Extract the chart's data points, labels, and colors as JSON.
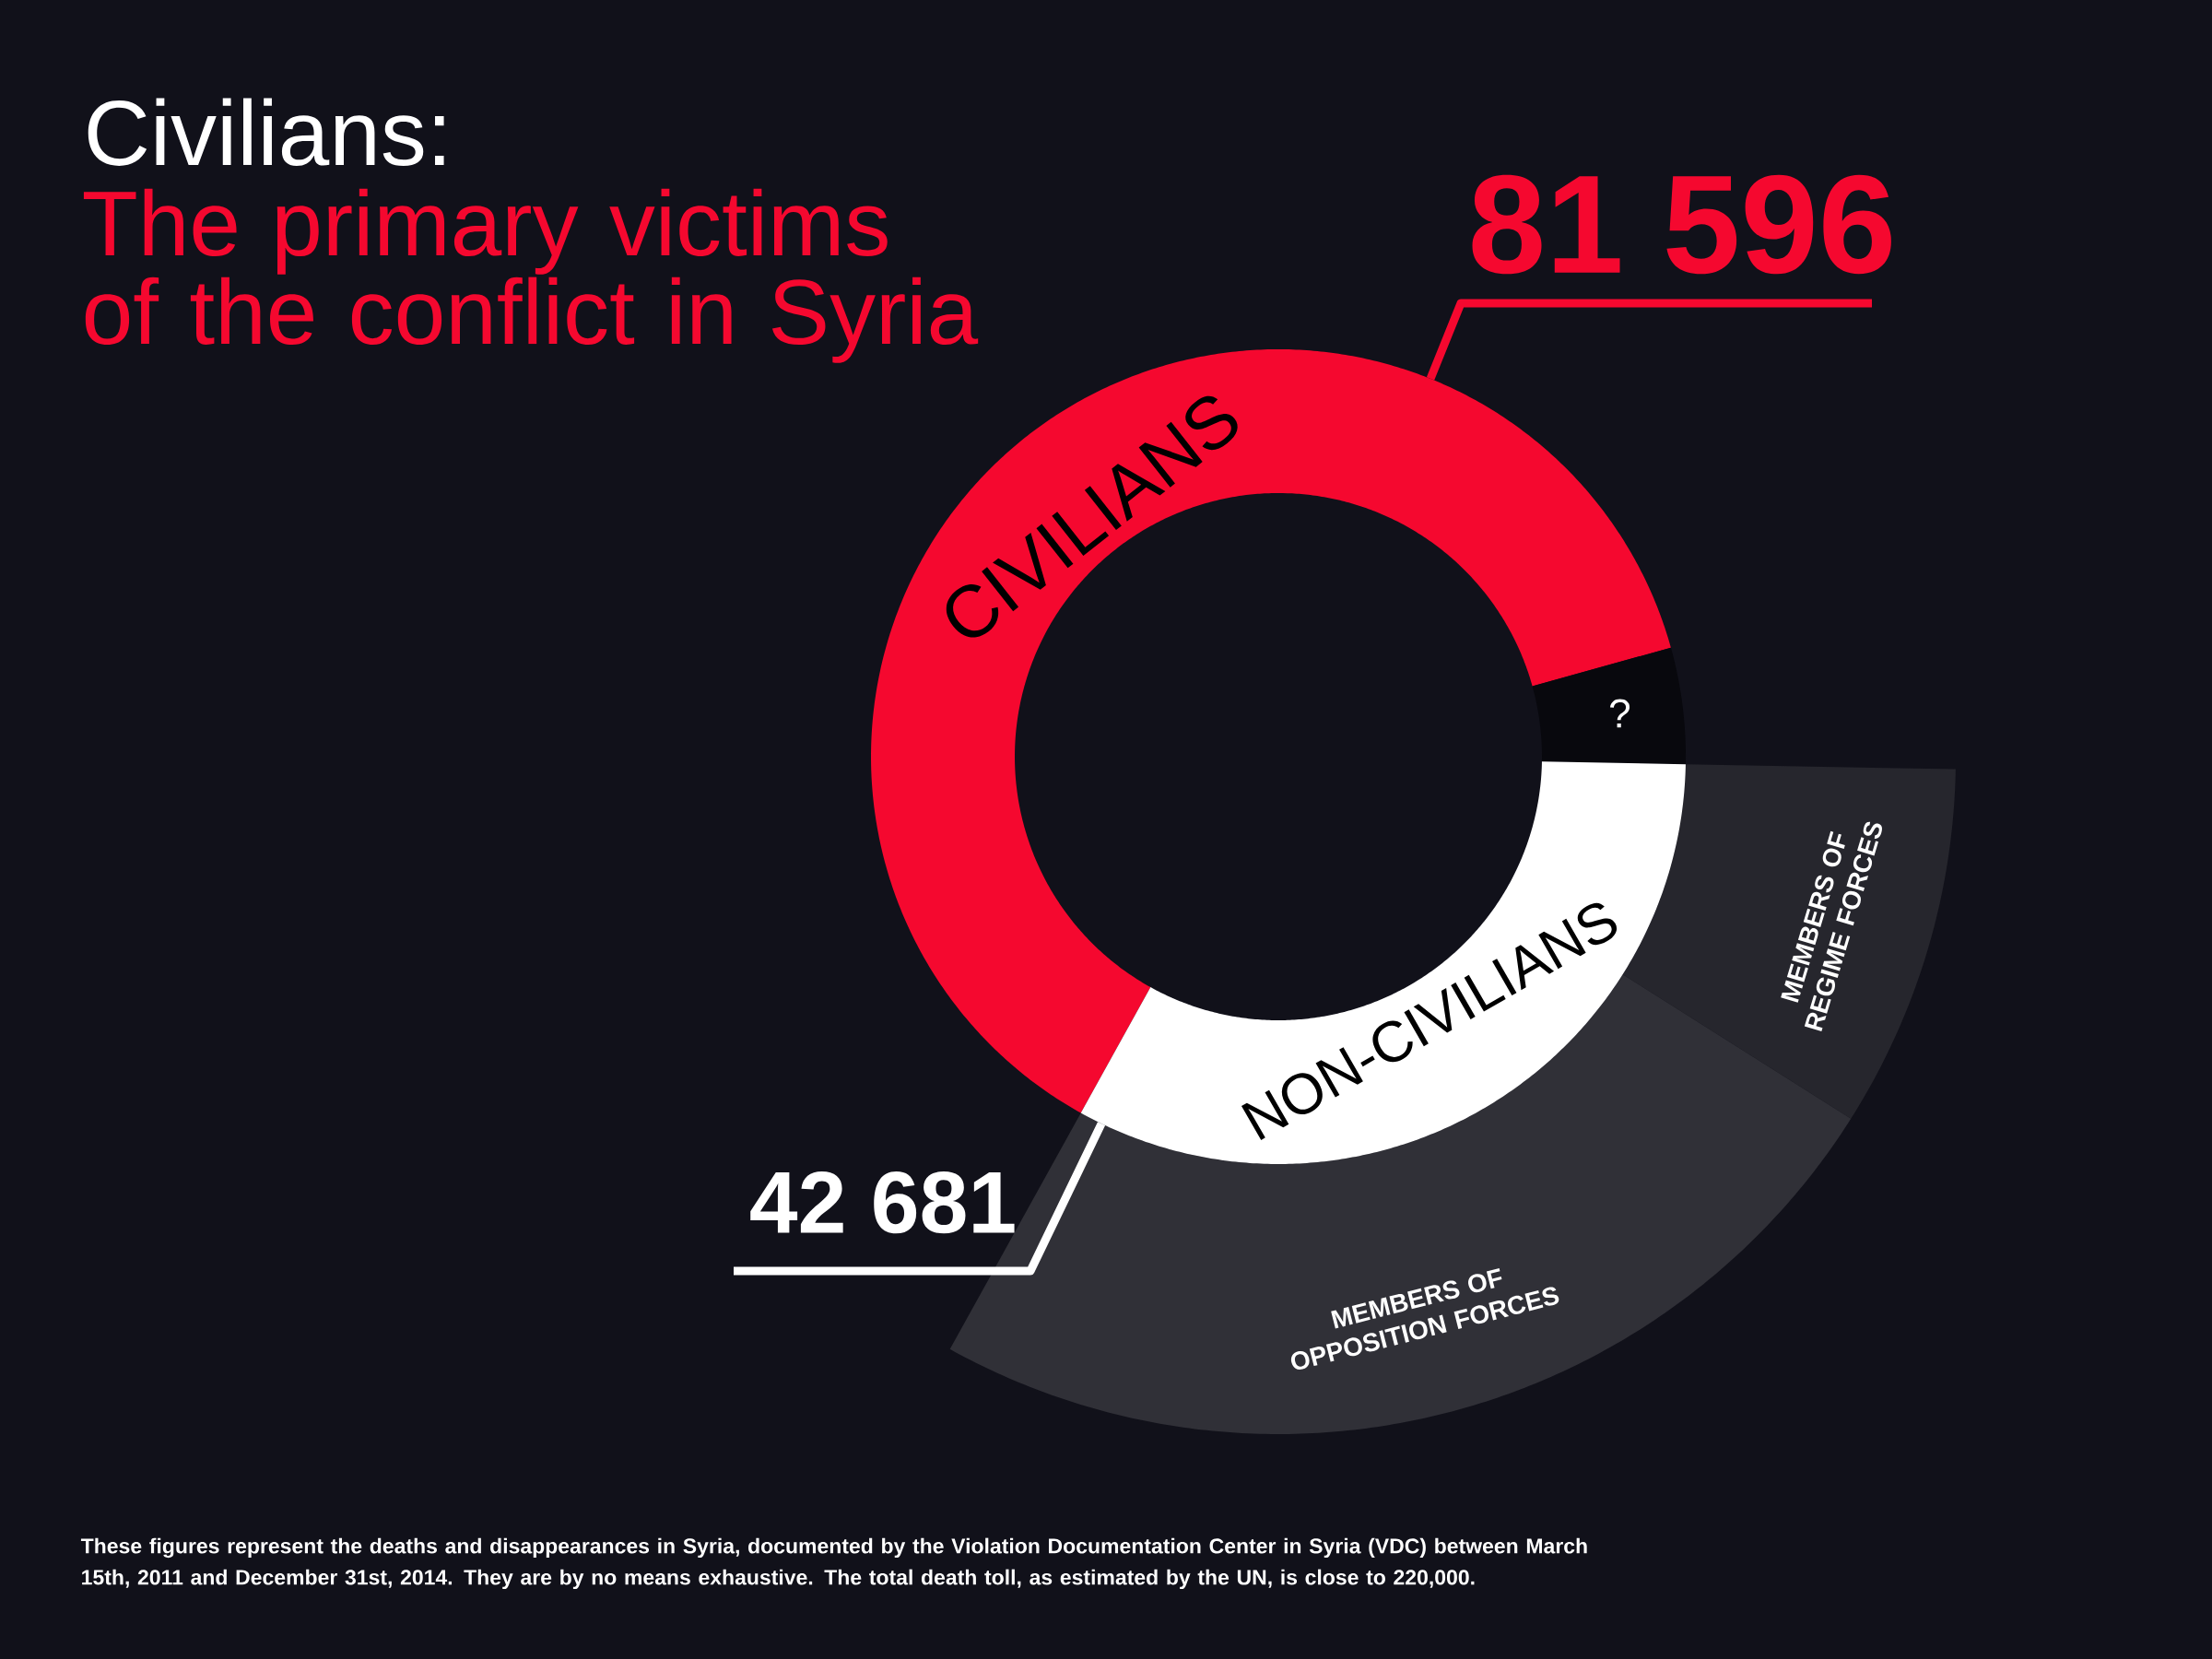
{
  "chart_data": [
    {
      "type": "donut",
      "title": "Civilians:",
      "subtitle": "The primary victims of the conflict in Syria",
      "categories": [
        "CIVILIANS",
        "?",
        "NON-CIVILIANS"
      ],
      "values": [
        81596,
        6000,
        42681
      ],
      "colors": [
        "#f5082f",
        "#08080d",
        "#ffffff"
      ],
      "value_labels": [
        "81 596",
        null,
        "42 681"
      ],
      "annotations": [
        "These figures represent the deaths and disappearances in Syria, documented by the Violation Documentation Center in Syria (VDC) between March 15th, 2011 and December 31st, 2014. They are by no means exhaustive. The total death toll, as estimated by the UN, is close to 220,000."
      ]
    },
    {
      "type": "donut",
      "categories": [
        "MEMBERS OF REGIME FORCES",
        "MEMBERS OF OPPOSITION FORCES"
      ],
      "values": [
        26.5,
        73.5
      ],
      "colors": [
        "#26262d",
        "#303037"
      ]
    }
  ]
}
